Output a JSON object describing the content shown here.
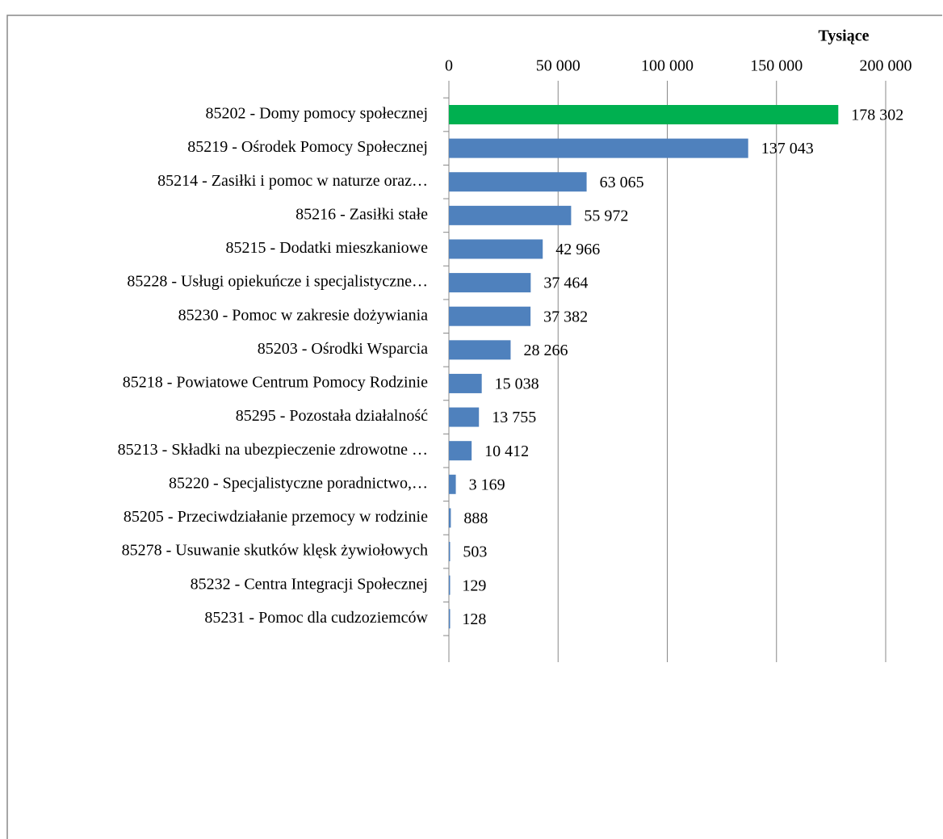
{
  "chart_data": {
    "type": "barh",
    "axis_title": "Tysiące",
    "categories": [
      "85202 - Domy pomocy społecznej",
      "85219 - Ośrodek Pomocy Społecznej",
      "85214 - Zasiłki i pomoc w naturze oraz…",
      "85216 - Zasiłki stałe",
      "85215 - Dodatki mieszkaniowe",
      "85228 - Usługi opiekuńcze i specjalistyczne…",
      "85230 - Pomoc w zakresie dożywiania",
      "85203 - Ośrodki Wsparcia",
      "85218 - Powiatowe Centrum Pomocy Rodzinie",
      "85295 - Pozostała działalność",
      "85213 - Składki na ubezpieczenie zdrowotne …",
      "85220 - Specjalistyczne poradnictwo,…",
      "85205 - Przeciwdziałanie przemocy w rodzinie",
      "85278 - Usuwanie skutków klęsk żywiołowych",
      "85232 - Centra Integracji Społecznej",
      "85231 - Pomoc dla cudzoziemców"
    ],
    "values": [
      178302,
      137043,
      63065,
      55972,
      42966,
      37464,
      37382,
      28266,
      15038,
      13755,
      10412,
      3169,
      888,
      503,
      129,
      128
    ],
    "value_labels": [
      "178 302",
      "137 043",
      "63 065",
      "55 972",
      "42 966",
      "37 464",
      "37 382",
      "28 266",
      "15 038",
      "13 755",
      "10 412",
      "3 169",
      "888",
      "503",
      "129",
      "128"
    ],
    "colors": [
      "#00b050",
      "#4f81bd",
      "#4f81bd",
      "#4f81bd",
      "#4f81bd",
      "#4f81bd",
      "#4f81bd",
      "#4f81bd",
      "#4f81bd",
      "#4f81bd",
      "#4f81bd",
      "#4f81bd",
      "#4f81bd",
      "#4f81bd",
      "#4f81bd",
      "#4f81bd"
    ],
    "xlim": [
      0,
      200000
    ],
    "xticks": [
      0,
      {
        "value": 50000,
        "label": "50 000"
      },
      {
        "value": 100000,
        "label": "100 000"
      },
      {
        "value": 150000,
        "label": "150 000"
      },
      {
        "value": 200000,
        "label": "200 000"
      }
    ],
    "grid": true
  }
}
